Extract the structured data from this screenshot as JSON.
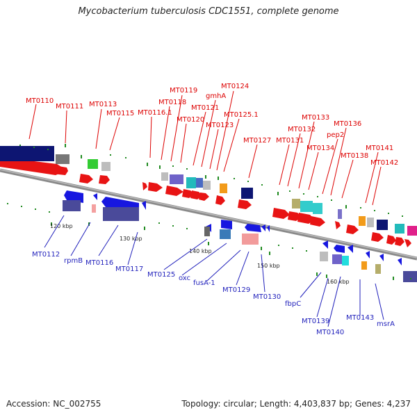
{
  "title": "Mycobacterium tuberculosis CDC1551, complete genome",
  "footer": {
    "accession": "Accession: NC_002755",
    "stats": "Topology: circular; Length: 4,403,837 bp; Genes: 4,237"
  },
  "colors": {
    "forward": "#e81414",
    "reverse": "#1717e0",
    "backbone": "#888888"
  },
  "ticks": [
    "120 kbp",
    "130 kbp",
    "140 kbp",
    "150 kbp",
    "160 kbp"
  ],
  "top_labels": [
    "MT0110",
    "MT0111",
    "MT0113",
    "MT0115",
    "MT0116.1",
    "MT0118",
    "MT0119",
    "MT0120",
    "MT0121",
    "gmhA",
    "MT0123",
    "MT0124",
    "MT0125.1",
    "MT0127",
    "MT0131",
    "MT0132",
    "MT0133",
    "MT0134",
    "pep2",
    "MT0136",
    "MT0138",
    "MT0141",
    "MT0142"
  ],
  "bottom_labels": [
    "MT0112",
    "rpmB",
    "MT0116",
    "MT0117",
    "MT0125",
    "oxc",
    "fusA-1",
    "MT0129",
    "MT0130",
    "fbpC",
    "MT0139",
    "MT0140",
    "MT0143",
    "msrA"
  ]
}
